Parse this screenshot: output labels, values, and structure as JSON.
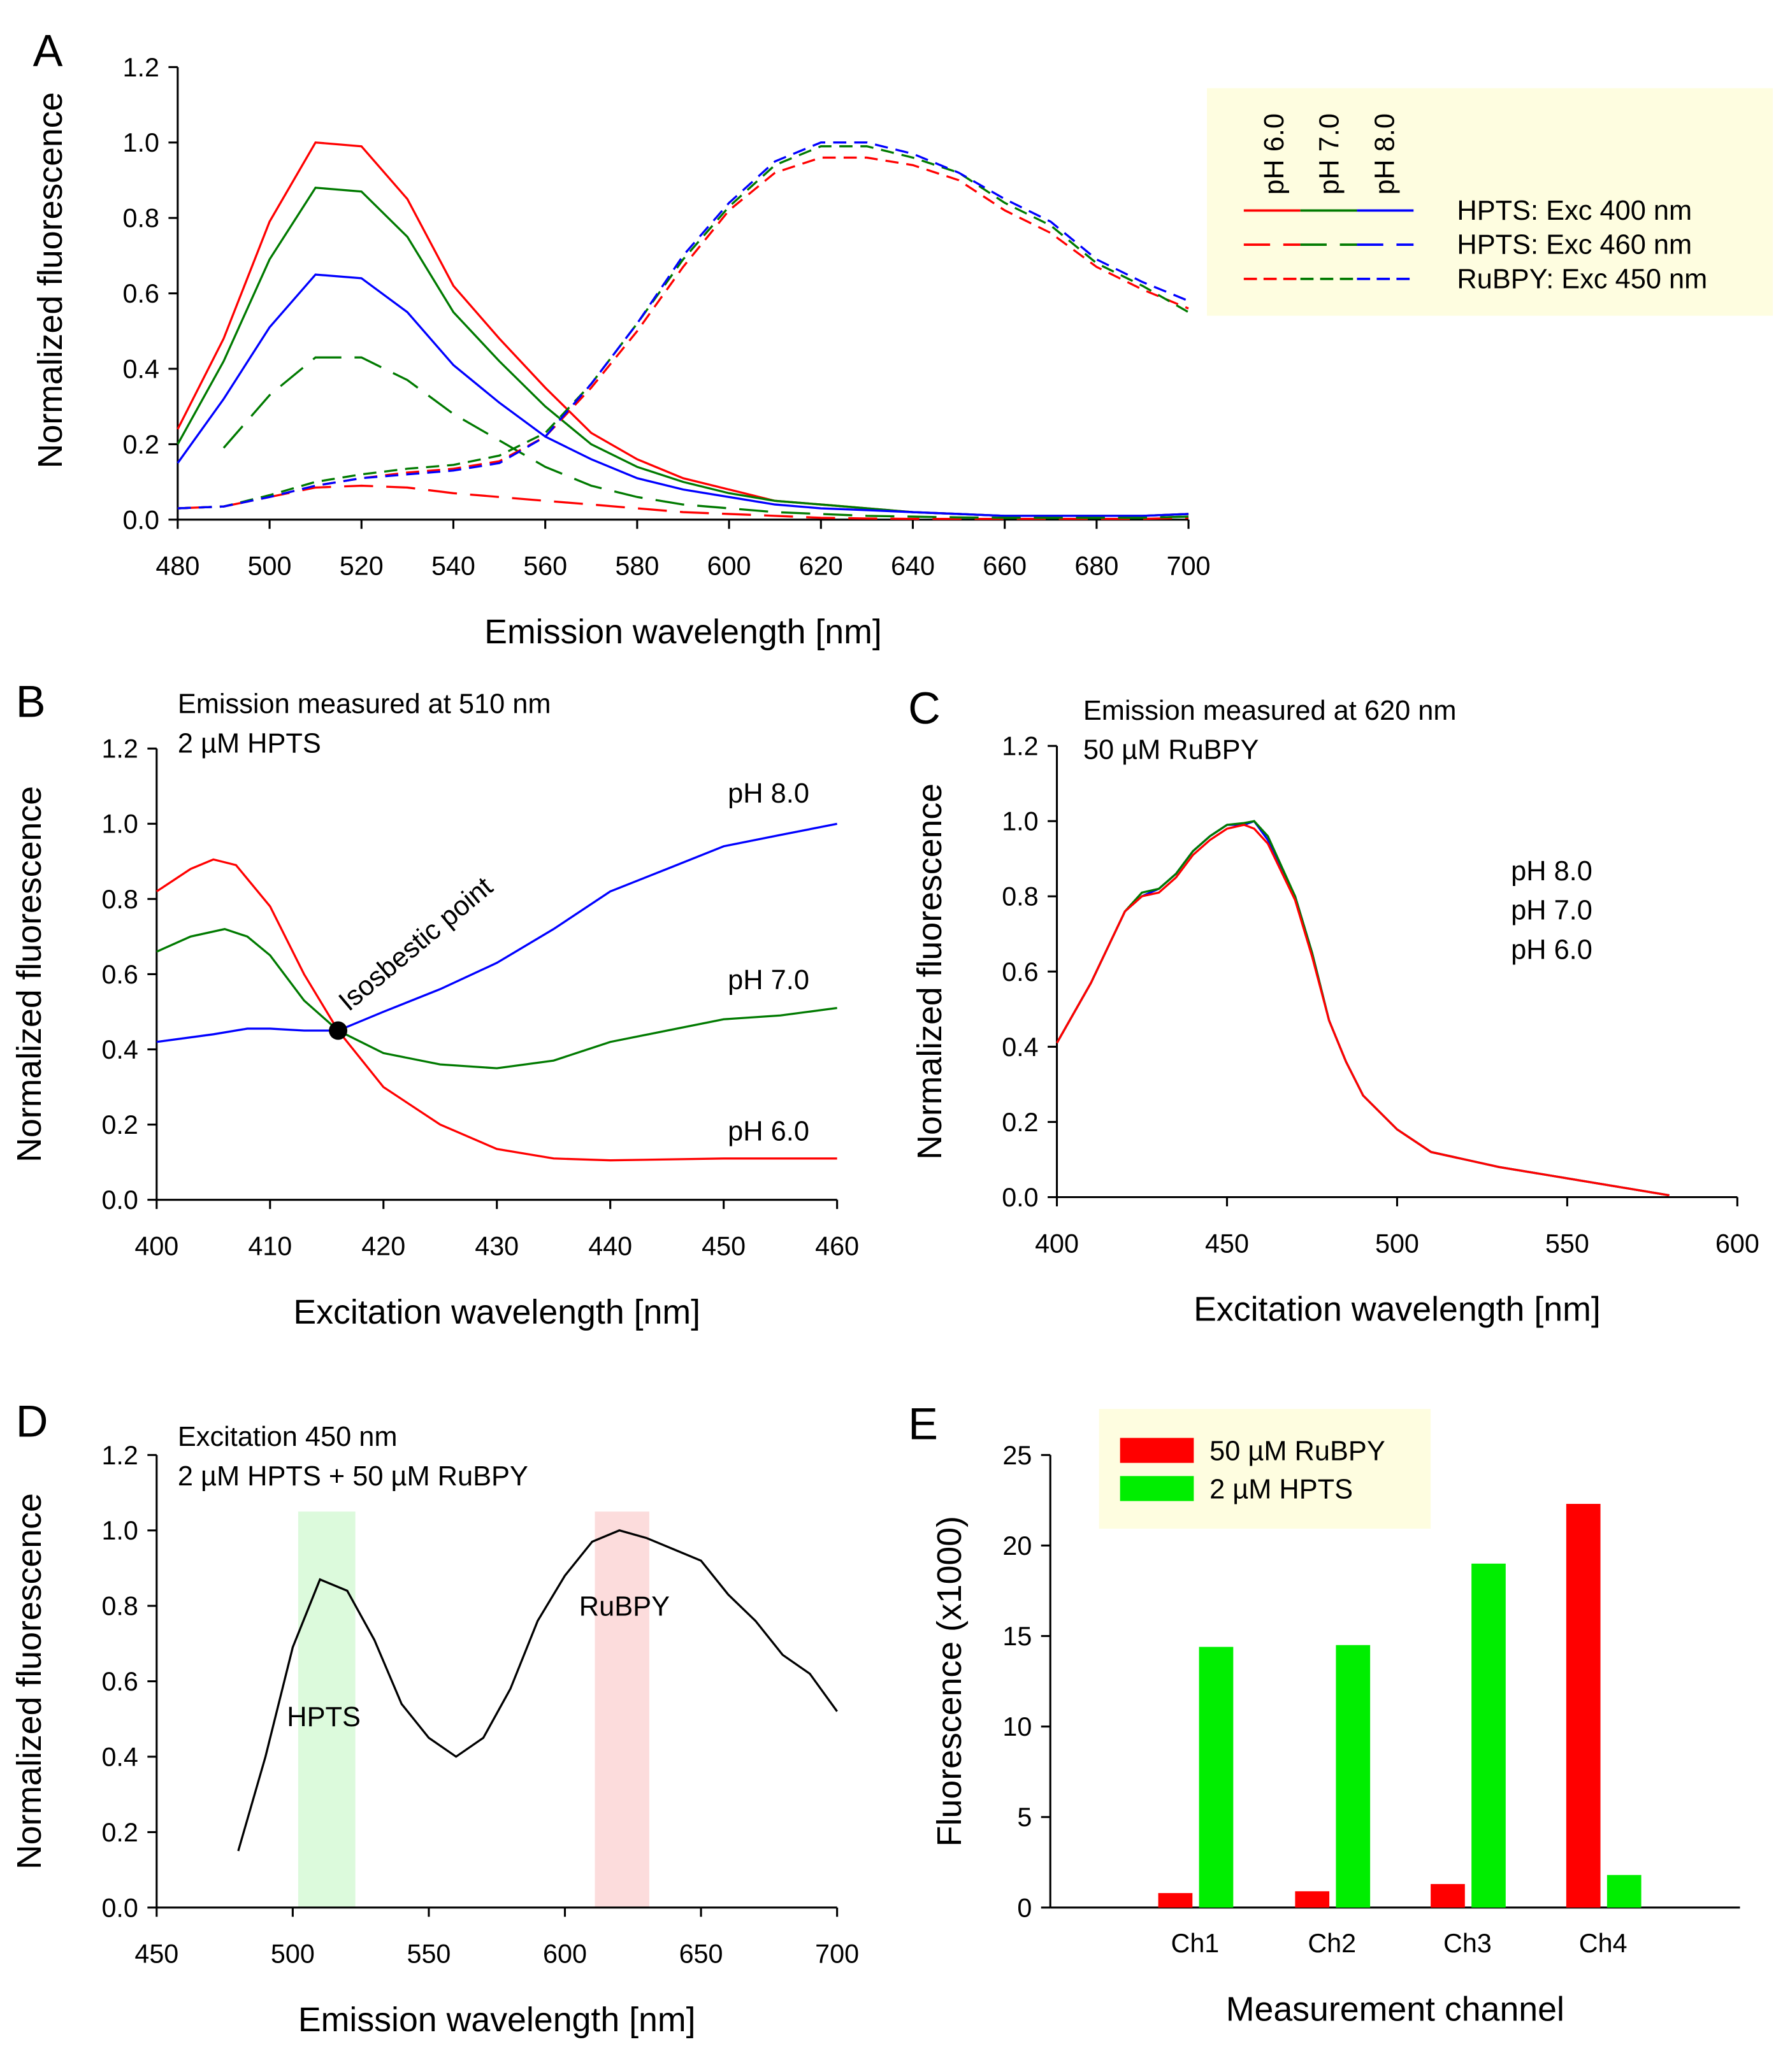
{
  "colors": {
    "red": "#ff0000",
    "green": "#007a00",
    "blue": "#0000ff",
    "black": "#000000",
    "legend_bg": "#fefde0",
    "bar_red": "#ff0000",
    "bar_green": "#00ee00",
    "band_green": "#dcfadc",
    "band_red": "#fcdcdc"
  },
  "chart_data": [
    {
      "panel": "A",
      "type": "line",
      "xlabel": "Emission wavelength [nm]",
      "ylabel": "Normalized fluorescence",
      "xlim": [
        480,
        700
      ],
      "ylim": [
        0,
        1.2
      ],
      "xticks": [
        "480",
        "500",
        "520",
        "540",
        "560",
        "580",
        "600",
        "620",
        "640",
        "660",
        "680",
        "700"
      ],
      "yticks": [
        "0.0",
        "0.2",
        "0.4",
        "0.6",
        "0.8",
        "1.0",
        "1.2"
      ],
      "x": [
        480,
        490,
        500,
        510,
        520,
        530,
        540,
        550,
        560,
        570,
        580,
        590,
        600,
        610,
        620,
        630,
        640,
        650,
        660,
        670,
        680,
        690,
        700
      ],
      "series": [
        {
          "group": "HPTS: Exc 400 nm",
          "ph": "pH 6.0",
          "color": "red",
          "dash": "solid",
          "values": [
            0.24,
            0.48,
            0.79,
            1.0,
            0.99,
            0.85,
            0.62,
            0.48,
            0.35,
            0.23,
            0.16,
            0.11,
            0.08,
            0.05,
            0.04,
            0.03,
            0.02,
            0.015,
            0.01,
            0.01,
            0.01,
            0.01,
            0.015
          ]
        },
        {
          "group": "HPTS: Exc 400 nm",
          "ph": "pH 7.0",
          "color": "green",
          "dash": "solid",
          "values": [
            0.2,
            0.42,
            0.69,
            0.88,
            0.87,
            0.75,
            0.55,
            0.42,
            0.3,
            0.2,
            0.14,
            0.1,
            0.07,
            0.05,
            0.04,
            0.03,
            0.02,
            0.015,
            0.01,
            0.01,
            0.01,
            0.01,
            0.015
          ]
        },
        {
          "group": "HPTS: Exc 400 nm",
          "ph": "pH 8.0",
          "color": "blue",
          "dash": "solid",
          "values": [
            0.15,
            0.32,
            0.51,
            0.65,
            0.64,
            0.55,
            0.41,
            0.31,
            0.22,
            0.16,
            0.11,
            0.08,
            0.06,
            0.04,
            0.03,
            0.025,
            0.02,
            0.015,
            0.01,
            0.01,
            0.01,
            0.01,
            0.015
          ]
        },
        {
          "group": "HPTS: Exc 460 nm",
          "ph": "pH 6.0",
          "color": "red",
          "dash": "long",
          "values": [
            0.03,
            0.035,
            0.06,
            0.085,
            0.09,
            0.085,
            0.07,
            0.06,
            0.05,
            0.04,
            0.03,
            0.02,
            0.015,
            0.01,
            0.005,
            0.003,
            0.002,
            0.002,
            0.002,
            0.002,
            0.002,
            0.002,
            0.005
          ]
        },
        {
          "group": "HPTS: Exc 460 nm",
          "ph": "pH 7.0",
          "color": "green",
          "dash": "long",
          "values": [
            null,
            0.19,
            0.33,
            0.43,
            0.43,
            0.37,
            0.28,
            0.21,
            0.14,
            0.09,
            0.06,
            0.04,
            0.03,
            0.02,
            0.015,
            0.01,
            0.008,
            0.006,
            0.005,
            0.005,
            0.005,
            0.005,
            0.008
          ]
        },
        {
          "group": "RuBPY: Exc 450 nm",
          "ph": "pH 6.0",
          "color": "red",
          "dash": "short",
          "values": [
            0.03,
            0.035,
            0.06,
            0.09,
            0.11,
            0.125,
            0.135,
            0.155,
            0.22,
            0.35,
            0.5,
            0.67,
            0.82,
            0.92,
            0.96,
            0.96,
            0.94,
            0.9,
            0.82,
            0.76,
            0.67,
            0.61,
            0.56
          ]
        },
        {
          "group": "RuBPY: Exc 450 nm",
          "ph": "pH 7.0",
          "color": "green",
          "dash": "short",
          "values": [
            0.03,
            0.035,
            0.065,
            0.1,
            0.12,
            0.135,
            0.145,
            0.17,
            0.23,
            0.36,
            0.52,
            0.69,
            0.83,
            0.94,
            0.99,
            0.99,
            0.96,
            0.92,
            0.84,
            0.78,
            0.68,
            0.62,
            0.55
          ]
        },
        {
          "group": "RuBPY: Exc 450 nm",
          "ph": "pH 8.0",
          "color": "blue",
          "dash": "short",
          "values": [
            0.03,
            0.035,
            0.06,
            0.09,
            0.11,
            0.12,
            0.13,
            0.15,
            0.22,
            0.36,
            0.52,
            0.7,
            0.84,
            0.95,
            1.0,
            1.0,
            0.97,
            0.92,
            0.85,
            0.79,
            0.69,
            0.63,
            0.58
          ]
        }
      ],
      "legend": {
        "ph_labels": [
          "pH 6.0",
          "pH 7.0",
          "pH 8.0"
        ],
        "entries": [
          "HPTS: Exc 400 nm",
          "HPTS: Exc 460 nm",
          "RuBPY: Exc 450 nm"
        ],
        "placement": "top-right"
      }
    },
    {
      "panel": "B",
      "type": "line",
      "xlabel": "Excitation wavelength [nm]",
      "ylabel": "Normalized fluorescence",
      "xlim": [
        400,
        460
      ],
      "ylim": [
        0,
        1.2
      ],
      "xticks": [
        "400",
        "410",
        "420",
        "430",
        "440",
        "450",
        "460"
      ],
      "yticks": [
        "0.0",
        "0.2",
        "0.4",
        "0.6",
        "0.8",
        "1.0",
        "1.2"
      ],
      "annotations": [
        "Emission measured at 510 nm",
        "2 µM HPTS"
      ],
      "isosbestic": {
        "label": "Isosbestic point",
        "x": 416,
        "y": 0.45
      },
      "series": [
        {
          "name": "pH 8.0",
          "color": "blue",
          "x": [
            400,
            405,
            408,
            410,
            413,
            416,
            420,
            425,
            430,
            435,
            440,
            445,
            450,
            455,
            460
          ],
          "values": [
            0.42,
            0.44,
            0.455,
            0.455,
            0.45,
            0.45,
            0.5,
            0.56,
            0.63,
            0.72,
            0.82,
            0.88,
            0.94,
            0.97,
            1.0
          ]
        },
        {
          "name": "pH 7.0",
          "color": "green",
          "x": [
            400,
            403,
            406,
            408,
            410,
            413,
            416,
            420,
            425,
            430,
            435,
            440,
            445,
            450,
            455,
            460
          ],
          "values": [
            0.66,
            0.7,
            0.72,
            0.7,
            0.65,
            0.53,
            0.45,
            0.39,
            0.36,
            0.35,
            0.37,
            0.42,
            0.45,
            0.48,
            0.49,
            0.51
          ]
        },
        {
          "name": "pH 6.0",
          "color": "red",
          "x": [
            400,
            403,
            405,
            407,
            410,
            413,
            416,
            420,
            425,
            430,
            435,
            440,
            450,
            460
          ],
          "values": [
            0.82,
            0.88,
            0.905,
            0.89,
            0.78,
            0.6,
            0.45,
            0.3,
            0.2,
            0.135,
            0.11,
            0.105,
            0.11,
            0.11
          ]
        }
      ]
    },
    {
      "panel": "C",
      "type": "line",
      "xlabel": "Excitation wavelength [nm]",
      "ylabel": "Normalized fluorescence",
      "xlim": [
        400,
        600
      ],
      "ylim": [
        0,
        1.2
      ],
      "xticks": [
        "400",
        "450",
        "500",
        "550",
        "600"
      ],
      "yticks": [
        "0.0",
        "0.2",
        "0.4",
        "0.6",
        "0.8",
        "1.0",
        "1.2"
      ],
      "annotations": [
        "Emission measured at 620 nm",
        "50 µM RuBPY"
      ],
      "x": [
        400,
        410,
        420,
        425,
        430,
        435,
        440,
        445,
        450,
        455,
        458,
        462,
        470,
        475,
        480,
        485,
        490,
        500,
        510,
        520,
        530,
        540,
        550,
        560,
        570,
        580
      ],
      "series": [
        {
          "name": "pH 8.0",
          "color": "blue",
          "values": [
            0.41,
            0.57,
            0.76,
            0.8,
            0.82,
            0.86,
            0.92,
            0.96,
            0.99,
            0.99,
            1.0,
            0.95,
            0.8,
            0.65,
            0.47,
            0.36,
            0.27,
            0.18,
            0.12,
            0.1,
            0.08,
            0.065,
            0.05,
            0.035,
            0.02,
            0.005
          ]
        },
        {
          "name": "pH 7.0",
          "color": "green",
          "values": [
            0.41,
            0.57,
            0.76,
            0.81,
            0.82,
            0.86,
            0.92,
            0.96,
            0.99,
            0.995,
            1.0,
            0.96,
            0.8,
            0.65,
            0.47,
            0.36,
            0.27,
            0.18,
            0.12,
            0.1,
            0.08,
            0.065,
            0.05,
            0.035,
            0.02,
            0.005
          ]
        },
        {
          "name": "pH 6.0",
          "color": "red",
          "values": [
            0.41,
            0.57,
            0.76,
            0.8,
            0.81,
            0.85,
            0.91,
            0.95,
            0.98,
            0.99,
            0.98,
            0.94,
            0.79,
            0.64,
            0.47,
            0.36,
            0.27,
            0.18,
            0.12,
            0.1,
            0.08,
            0.065,
            0.05,
            0.035,
            0.02,
            0.005
          ]
        }
      ]
    },
    {
      "panel": "D",
      "type": "line",
      "xlabel": "Emission wavelength [nm]",
      "ylabel": "Normalized fluorescence",
      "xlim": [
        450,
        700
      ],
      "ylim": [
        0,
        1.2
      ],
      "xticks": [
        "450",
        "500",
        "550",
        "600",
        "650",
        "700"
      ],
      "yticks": [
        "0.0",
        "0.2",
        "0.4",
        "0.6",
        "0.8",
        "1.0",
        "1.2"
      ],
      "annotations": [
        "Excitation 450 nm",
        "2 µM HPTS + 50 µM RuBPY"
      ],
      "bands": [
        {
          "label": "HPTS",
          "from": 502,
          "to": 523,
          "color": "band_green"
        },
        {
          "label": "RuBPY",
          "from": 611,
          "to": 631,
          "color": "band_red"
        }
      ],
      "x": [
        480,
        490,
        500,
        510,
        520,
        530,
        540,
        550,
        560,
        570,
        580,
        590,
        600,
        610,
        620,
        630,
        640,
        650,
        660,
        670,
        680,
        690,
        700
      ],
      "series": [
        {
          "color": "black",
          "values": [
            0.15,
            0.4,
            0.69,
            0.87,
            0.84,
            0.71,
            0.54,
            0.45,
            0.4,
            0.45,
            0.58,
            0.76,
            0.88,
            0.97,
            1.0,
            0.98,
            0.95,
            0.92,
            0.83,
            0.76,
            0.67,
            0.62,
            0.52
          ]
        }
      ]
    },
    {
      "panel": "E",
      "type": "bar",
      "xlabel": "Measurement channel",
      "ylabel": "Fluorescence (x1000)",
      "ylim": [
        0,
        25
      ],
      "yticks": [
        "0",
        "5",
        "10",
        "15",
        "20",
        "25"
      ],
      "categories": [
        "Ch1",
        "Ch2",
        "Ch3",
        "Ch4"
      ],
      "series": [
        {
          "name": "50 µM RuBPY",
          "color": "bar_red",
          "values": [
            0.8,
            0.9,
            1.3,
            22.3
          ]
        },
        {
          "name": "2 µM HPTS",
          "color": "bar_green",
          "values": [
            14.4,
            14.5,
            19.0,
            1.8
          ]
        }
      ],
      "legend": {
        "placement": "top-left"
      }
    }
  ]
}
